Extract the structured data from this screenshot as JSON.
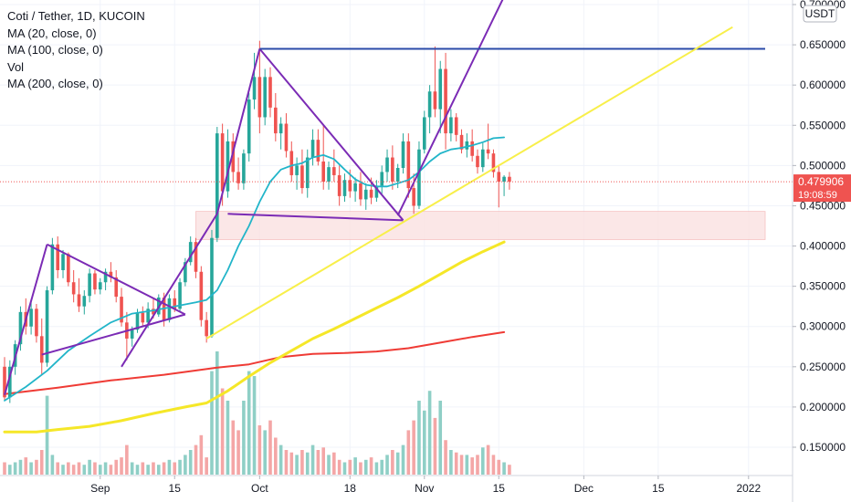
{
  "legend": {
    "title": "Coti / Tether, 1D, KUCOIN",
    "ma20": "MA (20, close, 0)",
    "ma100": "MA (100, close, 0)",
    "vol": "Vol",
    "ma200": "MA (200, close, 0)"
  },
  "currency_badge": "USDT",
  "price_badge": {
    "price": "0.479906",
    "countdown": "19:08:59"
  },
  "colors": {
    "up": "#26a69a",
    "down": "#ef5350",
    "vol_up": "#8fcfc6",
    "vol_down": "#f4a6a6",
    "ma20": "#22b5c9",
    "ma100": "#f5e728",
    "ma200": "#ef3b35",
    "purple": "#7b2bb5",
    "blue": "#2a4aa8",
    "yellow": "#f8ef4a",
    "zone": "#fbe3e3"
  },
  "chart_data": {
    "type": "candlestick",
    "title": "Coti / Tether, 1D, KUCOIN",
    "y_axis": {
      "ticks": [
        "0.700000",
        "0.650000",
        "0.600000",
        "0.550000",
        "0.500000",
        "0.450000",
        "0.400000",
        "0.350000",
        "0.300000",
        "0.250000",
        "0.200000",
        "0.150000"
      ],
      "range": [
        0.11,
        0.71
      ]
    },
    "x_axis": {
      "ticks": [
        {
          "label": "Sep",
          "index": 18
        },
        {
          "label": "15",
          "index": 32
        },
        {
          "label": "Oct",
          "index": 48
        },
        {
          "label": "18",
          "index": 65
        },
        {
          "label": "Nov",
          "index": 79
        },
        {
          "label": "15",
          "index": 93
        },
        {
          "label": "Dec",
          "index": 109
        },
        {
          "label": "15",
          "index": 123
        },
        {
          "label": "2022",
          "index": 140
        }
      ]
    },
    "ohlc": [
      [
        0.25,
        0.262,
        0.208,
        0.212
      ],
      [
        0.212,
        0.258,
        0.205,
        0.25
      ],
      [
        0.25,
        0.283,
        0.24,
        0.278
      ],
      [
        0.278,
        0.325,
        0.27,
        0.318
      ],
      [
        0.318,
        0.335,
        0.29,
        0.3
      ],
      [
        0.3,
        0.332,
        0.29,
        0.322
      ],
      [
        0.322,
        0.328,
        0.28,
        0.288
      ],
      [
        0.288,
        0.31,
        0.24,
        0.255
      ],
      [
        0.255,
        0.35,
        0.25,
        0.345
      ],
      [
        0.345,
        0.41,
        0.34,
        0.402
      ],
      [
        0.402,
        0.412,
        0.36,
        0.37
      ],
      [
        0.37,
        0.395,
        0.36,
        0.39
      ],
      [
        0.39,
        0.392,
        0.35,
        0.355
      ],
      [
        0.355,
        0.37,
        0.33,
        0.34
      ],
      [
        0.34,
        0.36,
        0.318,
        0.325
      ],
      [
        0.325,
        0.345,
        0.315,
        0.338
      ],
      [
        0.338,
        0.372,
        0.33,
        0.366
      ],
      [
        0.366,
        0.37,
        0.34,
        0.346
      ],
      [
        0.346,
        0.36,
        0.34,
        0.355
      ],
      [
        0.355,
        0.372,
        0.345,
        0.368
      ],
      [
        0.368,
        0.38,
        0.355,
        0.361
      ],
      [
        0.361,
        0.37,
        0.33,
        0.337
      ],
      [
        0.337,
        0.348,
        0.3,
        0.305
      ],
      [
        0.305,
        0.318,
        0.258,
        0.285
      ],
      [
        0.285,
        0.3,
        0.275,
        0.296
      ],
      [
        0.296,
        0.322,
        0.292,
        0.317
      ],
      [
        0.317,
        0.325,
        0.3,
        0.305
      ],
      [
        0.305,
        0.33,
        0.298,
        0.322
      ],
      [
        0.322,
        0.335,
        0.31,
        0.315
      ],
      [
        0.315,
        0.34,
        0.312,
        0.336
      ],
      [
        0.336,
        0.342,
        0.3,
        0.308
      ],
      [
        0.308,
        0.34,
        0.305,
        0.335
      ],
      [
        0.335,
        0.345,
        0.318,
        0.322
      ],
      [
        0.322,
        0.36,
        0.318,
        0.355
      ],
      [
        0.355,
        0.385,
        0.35,
        0.38
      ],
      [
        0.38,
        0.412,
        0.376,
        0.405
      ],
      [
        0.405,
        0.41,
        0.36,
        0.368
      ],
      [
        0.368,
        0.375,
        0.3,
        0.308
      ],
      [
        0.308,
        0.318,
        0.28,
        0.288
      ],
      [
        0.288,
        0.42,
        0.286,
        0.41
      ],
      [
        0.41,
        0.548,
        0.405,
        0.54
      ],
      [
        0.54,
        0.552,
        0.45,
        0.468
      ],
      [
        0.468,
        0.545,
        0.46,
        0.53
      ],
      [
        0.53,
        0.54,
        0.48,
        0.492
      ],
      [
        0.492,
        0.51,
        0.47,
        0.478
      ],
      [
        0.478,
        0.52,
        0.47,
        0.515
      ],
      [
        0.515,
        0.59,
        0.505,
        0.582
      ],
      [
        0.582,
        0.64,
        0.57,
        0.61
      ],
      [
        0.61,
        0.655,
        0.54,
        0.56
      ],
      [
        0.56,
        0.62,
        0.55,
        0.61
      ],
      [
        0.61,
        0.622,
        0.56,
        0.572
      ],
      [
        0.572,
        0.59,
        0.53,
        0.54
      ],
      [
        0.54,
        0.56,
        0.52,
        0.552
      ],
      [
        0.552,
        0.565,
        0.51,
        0.518
      ],
      [
        0.518,
        0.53,
        0.48,
        0.488
      ],
      [
        0.488,
        0.51,
        0.47,
        0.5
      ],
      [
        0.5,
        0.52,
        0.465,
        0.472
      ],
      [
        0.472,
        0.52,
        0.46,
        0.51
      ],
      [
        0.51,
        0.545,
        0.5,
        0.532
      ],
      [
        0.532,
        0.545,
        0.5,
        0.505
      ],
      [
        0.505,
        0.55,
        0.47,
        0.48
      ],
      [
        0.48,
        0.505,
        0.47,
        0.498
      ],
      [
        0.498,
        0.52,
        0.48,
        0.488
      ],
      [
        0.488,
        0.5,
        0.45,
        0.462
      ],
      [
        0.462,
        0.49,
        0.455,
        0.482
      ],
      [
        0.482,
        0.495,
        0.46,
        0.468
      ],
      [
        0.468,
        0.485,
        0.455,
        0.478
      ],
      [
        0.478,
        0.492,
        0.45,
        0.458
      ],
      [
        0.458,
        0.478,
        0.445,
        0.47
      ],
      [
        0.47,
        0.485,
        0.452,
        0.46
      ],
      [
        0.46,
        0.482,
        0.455,
        0.475
      ],
      [
        0.475,
        0.5,
        0.465,
        0.492
      ],
      [
        0.492,
        0.52,
        0.48,
        0.51
      ],
      [
        0.51,
        0.525,
        0.47,
        0.48
      ],
      [
        0.48,
        0.502,
        0.472,
        0.497
      ],
      [
        0.497,
        0.54,
        0.49,
        0.53
      ],
      [
        0.53,
        0.54,
        0.46,
        0.472
      ],
      [
        0.472,
        0.49,
        0.44,
        0.45
      ],
      [
        0.45,
        0.53,
        0.446,
        0.52
      ],
      [
        0.52,
        0.568,
        0.515,
        0.56
      ],
      [
        0.56,
        0.6,
        0.54,
        0.592
      ],
      [
        0.592,
        0.648,
        0.56,
        0.57
      ],
      [
        0.57,
        0.63,
        0.54,
        0.62
      ],
      [
        0.62,
        0.64,
        0.52,
        0.54
      ],
      [
        0.54,
        0.57,
        0.53,
        0.56
      ],
      [
        0.56,
        0.565,
        0.53,
        0.538
      ],
      [
        0.538,
        0.545,
        0.515,
        0.52
      ],
      [
        0.52,
        0.54,
        0.51,
        0.53
      ],
      [
        0.53,
        0.545,
        0.505,
        0.512
      ],
      [
        0.512,
        0.52,
        0.49,
        0.498
      ],
      [
        0.498,
        0.528,
        0.492,
        0.52
      ],
      [
        0.52,
        0.552,
        0.508,
        0.515
      ],
      [
        0.515,
        0.52,
        0.485,
        0.492
      ],
      [
        0.492,
        0.5,
        0.448,
        0.48
      ],
      [
        0.48,
        0.488,
        0.462,
        0.486
      ],
      [
        0.486,
        0.492,
        0.47,
        0.48
      ]
    ],
    "volume": [
      0.05,
      0.04,
      0.05,
      0.06,
      0.07,
      0.05,
      0.06,
      0.1,
      0.32,
      0.08,
      0.05,
      0.04,
      0.05,
      0.04,
      0.05,
      0.04,
      0.06,
      0.05,
      0.04,
      0.05,
      0.04,
      0.06,
      0.07,
      0.12,
      0.05,
      0.04,
      0.05,
      0.04,
      0.05,
      0.04,
      0.05,
      0.06,
      0.05,
      0.06,
      0.08,
      0.1,
      0.12,
      0.16,
      0.07,
      0.42,
      0.5,
      0.35,
      0.3,
      0.22,
      0.18,
      0.3,
      0.42,
      0.4,
      0.2,
      0.18,
      0.22,
      0.15,
      0.12,
      0.1,
      0.09,
      0.08,
      0.1,
      0.09,
      0.12,
      0.1,
      0.11,
      0.08,
      0.09,
      0.06,
      0.05,
      0.06,
      0.07,
      0.05,
      0.06,
      0.07,
      0.05,
      0.06,
      0.08,
      0.1,
      0.09,
      0.12,
      0.18,
      0.22,
      0.3,
      0.26,
      0.34,
      0.23,
      0.3,
      0.14,
      0.1,
      0.09,
      0.08,
      0.08,
      0.07,
      0.08,
      0.11,
      0.12,
      0.08,
      0.06,
      0.05,
      0.04
    ],
    "ma20": [
      [
        0,
        0.208
      ],
      [
        4,
        0.225
      ],
      [
        8,
        0.245
      ],
      [
        12,
        0.27
      ],
      [
        16,
        0.288
      ],
      [
        20,
        0.305
      ],
      [
        24,
        0.316
      ],
      [
        28,
        0.32
      ],
      [
        32,
        0.325
      ],
      [
        36,
        0.33
      ],
      [
        38,
        0.333
      ],
      [
        40,
        0.345
      ],
      [
        42,
        0.37
      ],
      [
        44,
        0.4
      ],
      [
        46,
        0.425
      ],
      [
        48,
        0.455
      ],
      [
        50,
        0.48
      ],
      [
        52,
        0.495
      ],
      [
        54,
        0.5
      ],
      [
        56,
        0.503
      ],
      [
        58,
        0.51
      ],
      [
        60,
        0.513
      ],
      [
        62,
        0.508
      ],
      [
        64,
        0.495
      ],
      [
        66,
        0.483
      ],
      [
        68,
        0.476
      ],
      [
        70,
        0.474
      ],
      [
        72,
        0.474
      ],
      [
        74,
        0.478
      ],
      [
        76,
        0.482
      ],
      [
        78,
        0.492
      ],
      [
        80,
        0.505
      ],
      [
        82,
        0.515
      ],
      [
        84,
        0.52
      ],
      [
        86,
        0.522
      ],
      [
        88,
        0.525
      ],
      [
        90,
        0.529
      ],
      [
        92,
        0.534
      ],
      [
        94,
        0.535
      ]
    ],
    "ma100": [
      [
        0,
        0.169
      ],
      [
        6,
        0.169
      ],
      [
        10,
        0.172
      ],
      [
        16,
        0.176
      ],
      [
        22,
        0.183
      ],
      [
        28,
        0.192
      ],
      [
        34,
        0.2
      ],
      [
        38,
        0.205
      ],
      [
        42,
        0.22
      ],
      [
        46,
        0.238
      ],
      [
        50,
        0.255
      ],
      [
        54,
        0.27
      ],
      [
        58,
        0.285
      ],
      [
        62,
        0.297
      ],
      [
        66,
        0.31
      ],
      [
        70,
        0.323
      ],
      [
        74,
        0.336
      ],
      [
        78,
        0.35
      ],
      [
        82,
        0.365
      ],
      [
        86,
        0.38
      ],
      [
        90,
        0.393
      ],
      [
        94,
        0.405
      ]
    ],
    "ma200": [
      [
        0,
        0.216
      ],
      [
        10,
        0.224
      ],
      [
        20,
        0.233
      ],
      [
        30,
        0.24
      ],
      [
        40,
        0.249
      ],
      [
        46,
        0.253
      ],
      [
        52,
        0.262
      ],
      [
        58,
        0.266
      ],
      [
        64,
        0.267
      ],
      [
        70,
        0.269
      ],
      [
        76,
        0.273
      ],
      [
        82,
        0.28
      ],
      [
        88,
        0.287
      ],
      [
        94,
        0.293
      ]
    ],
    "drawings": {
      "purple_lines": [
        [
          [
            0,
            0.215
          ],
          [
            8,
            0.402
          ]
        ],
        [
          [
            8,
            0.402
          ],
          [
            34,
            0.315
          ]
        ],
        [
          [
            7,
            0.265
          ],
          [
            34,
            0.315
          ]
        ],
        [
          [
            22,
            0.25
          ],
          [
            40,
            0.44
          ]
        ],
        [
          [
            40,
            0.44
          ],
          [
            48,
            0.645
          ]
        ],
        [
          [
            48,
            0.645
          ],
          [
            75,
            0.432
          ]
        ],
        [
          [
            42,
            0.44
          ],
          [
            75,
            0.432
          ]
        ],
        [
          [
            74,
            0.438
          ],
          [
            94,
            0.71
          ]
        ]
      ],
      "blue_line": [
        [
          48,
          0.645
        ],
        [
          150,
          0.645
        ]
      ],
      "yellow_line": [
        [
          38,
          0.285
        ],
        [
          137,
          0.672
        ]
      ],
      "zone": {
        "x_start": 36,
        "x_end": 150,
        "y_top": 0.443,
        "y_bottom": 0.408
      },
      "current_price": 0.479906
    }
  }
}
